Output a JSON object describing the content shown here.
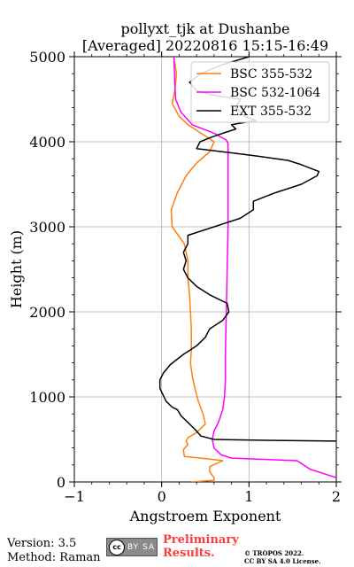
{
  "chart_data": {
    "type": "line",
    "title_line1": "pollyxt_tjk at Dushanbe",
    "title_line2": "[Averaged] 20220816 15:15-16:49",
    "xlabel": "Angstroem Exponent",
    "ylabel": "Height (m)",
    "xlim": [
      -1,
      2
    ],
    "ylim": [
      0,
      5000
    ],
    "xticks": [
      -1,
      0,
      1,
      2
    ],
    "xtick_labels": [
      "−1",
      "0",
      "1",
      "2"
    ],
    "yticks": [
      0,
      1000,
      2000,
      3000,
      4000,
      5000
    ],
    "ytick_labels": [
      "0",
      "1000",
      "2000",
      "3000",
      "4000",
      "5000"
    ],
    "grid": true,
    "legend_position": "top-right",
    "series": [
      {
        "name": "BSC 355-532",
        "color": "#ff7f0e",
        "points": [
          [
            0.34,
            0
          ],
          [
            0.6,
            20
          ],
          [
            0.6,
            50
          ],
          [
            0.55,
            120
          ],
          [
            0.55,
            180
          ],
          [
            0.7,
            250
          ],
          [
            0.62,
            260
          ],
          [
            0.45,
            280
          ],
          [
            0.26,
            300
          ],
          [
            0.25,
            380
          ],
          [
            0.3,
            440
          ],
          [
            0.28,
            480
          ],
          [
            0.3,
            520
          ],
          [
            0.4,
            580
          ],
          [
            0.5,
            680
          ],
          [
            0.48,
            780
          ],
          [
            0.42,
            950
          ],
          [
            0.38,
            1100
          ],
          [
            0.35,
            1250
          ],
          [
            0.33,
            1400
          ],
          [
            0.34,
            1550
          ],
          [
            0.34,
            1800
          ],
          [
            0.33,
            2000
          ],
          [
            0.32,
            2200
          ],
          [
            0.3,
            2400
          ],
          [
            0.3,
            2600
          ],
          [
            0.26,
            2800
          ],
          [
            0.12,
            3000
          ],
          [
            0.11,
            3200
          ],
          [
            0.18,
            3400
          ],
          [
            0.28,
            3600
          ],
          [
            0.4,
            3750
          ],
          [
            0.55,
            3880
          ],
          [
            0.6,
            4000
          ],
          [
            0.45,
            4100
          ],
          [
            0.3,
            4200
          ],
          [
            0.2,
            4300
          ],
          [
            0.12,
            4450
          ],
          [
            0.15,
            4600
          ],
          [
            0.17,
            4800
          ],
          [
            0.14,
            5000
          ]
        ]
      },
      {
        "name": "BSC 532-1064",
        "color": "#ff00ff",
        "points": [
          [
            2.0,
            50
          ],
          [
            1.7,
            150
          ],
          [
            1.55,
            250
          ],
          [
            1.2,
            265
          ],
          [
            0.8,
            280
          ],
          [
            0.68,
            320
          ],
          [
            0.6,
            400
          ],
          [
            0.58,
            500
          ],
          [
            0.6,
            600
          ],
          [
            0.65,
            700
          ],
          [
            0.7,
            850
          ],
          [
            0.72,
            1000
          ],
          [
            0.73,
            1200
          ],
          [
            0.73,
            1500
          ],
          [
            0.74,
            2000
          ],
          [
            0.75,
            2500
          ],
          [
            0.76,
            3000
          ],
          [
            0.76,
            3500
          ],
          [
            0.76,
            3980
          ],
          [
            0.74,
            4020
          ],
          [
            0.6,
            4100
          ],
          [
            0.35,
            4200
          ],
          [
            0.22,
            4350
          ],
          [
            0.16,
            4500
          ],
          [
            0.15,
            4700
          ],
          [
            0.14,
            5000
          ]
        ]
      },
      {
        "name": "EXT 355-532",
        "color": "#000000",
        "points": [
          [
            2.0,
            480
          ],
          [
            1.2,
            490
          ],
          [
            0.6,
            500
          ],
          [
            0.45,
            540
          ],
          [
            0.38,
            620
          ],
          [
            0.3,
            700
          ],
          [
            0.22,
            780
          ],
          [
            0.18,
            850
          ],
          [
            0.12,
            880
          ],
          [
            0.05,
            950
          ],
          [
            -0.02,
            1100
          ],
          [
            -0.02,
            1200
          ],
          [
            0.02,
            1280
          ],
          [
            0.1,
            1380
          ],
          [
            0.25,
            1500
          ],
          [
            0.4,
            1600
          ],
          [
            0.5,
            1700
          ],
          [
            0.55,
            1800
          ],
          [
            0.7,
            1900
          ],
          [
            0.77,
            2000
          ],
          [
            0.75,
            2100
          ],
          [
            0.55,
            2200
          ],
          [
            0.4,
            2300
          ],
          [
            0.3,
            2400
          ],
          [
            0.25,
            2500
          ],
          [
            0.28,
            2600
          ],
          [
            0.25,
            2700
          ],
          [
            0.3,
            2800
          ],
          [
            0.3,
            2900
          ],
          [
            0.6,
            3000
          ],
          [
            0.9,
            3100
          ],
          [
            1.05,
            3200
          ],
          [
            1.05,
            3300
          ],
          [
            1.3,
            3400
          ],
          [
            1.6,
            3500
          ],
          [
            1.78,
            3600
          ],
          [
            1.8,
            3650
          ],
          [
            1.6,
            3730
          ],
          [
            1.45,
            3780
          ],
          [
            1.1,
            3830
          ],
          [
            0.8,
            3870
          ],
          [
            0.4,
            3920
          ],
          [
            0.44,
            4000
          ],
          [
            0.56,
            4050
          ],
          [
            0.7,
            4100
          ],
          [
            0.85,
            4150
          ],
          [
            0.8,
            4200
          ],
          [
            1.08,
            4250
          ],
          [
            0.95,
            4300
          ],
          [
            0.85,
            4400
          ],
          [
            0.9,
            4500
          ],
          [
            0.58,
            4550
          ],
          [
            0.4,
            4600
          ],
          [
            0.32,
            4700
          ],
          [
            0.45,
            4800
          ],
          [
            0.68,
            4900
          ],
          [
            1.0,
            5000
          ]
        ]
      }
    ]
  },
  "footer": {
    "version": "Version: 3.5",
    "method": "Method: Raman",
    "license_icon": "creative-commons-by-sa-icon",
    "license_badge": "BY  SA",
    "preliminary_line1": "Preliminary",
    "preliminary_line2": "Results.",
    "preliminary_color": "#ff3b3b",
    "copyright_line1": "© TROPOS 2022.",
    "copyright_line2": "CC BY SA 4.0 License."
  }
}
